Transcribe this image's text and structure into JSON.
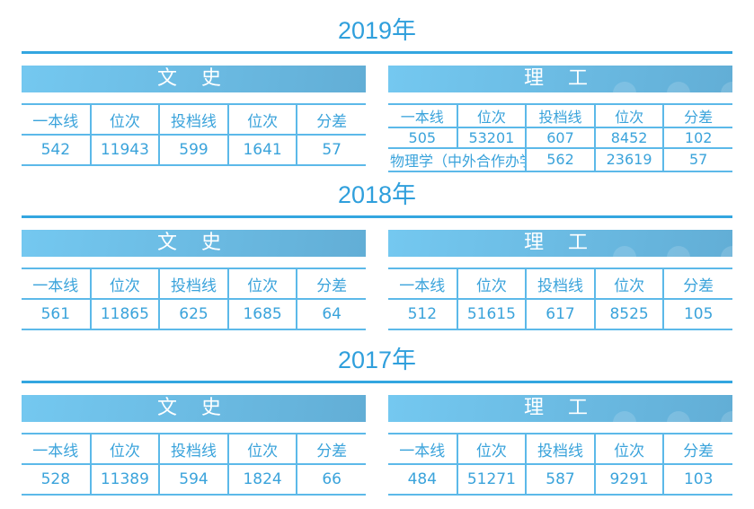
{
  "columns": [
    "一本线",
    "位次",
    "投档线",
    "位次",
    "分差"
  ],
  "sections": [
    {
      "year": "2019年",
      "left": {
        "title": "文 史",
        "rows": [
          [
            "542",
            "11943",
            "599",
            "1641",
            "57"
          ]
        ]
      },
      "right": {
        "title": "理 工",
        "rows": [
          [
            "505",
            "53201",
            "607",
            "8452",
            "102"
          ],
          [
            "物理学（中外合作办学）",
            "562",
            "23619",
            "57"
          ]
        ]
      }
    },
    {
      "year": "2018年",
      "left": {
        "title": "文 史",
        "rows": [
          [
            "561",
            "11865",
            "625",
            "1685",
            "64"
          ]
        ]
      },
      "right": {
        "title": "理 工",
        "rows": [
          [
            "512",
            "51615",
            "617",
            "8525",
            "105"
          ]
        ]
      }
    },
    {
      "year": "2017年",
      "left": {
        "title": "文 史",
        "rows": [
          [
            "528",
            "11389",
            "594",
            "1824",
            "66"
          ]
        ]
      },
      "right": {
        "title": "理 工",
        "rows": [
          [
            "484",
            "51271",
            "587",
            "9291",
            "103"
          ]
        ]
      }
    }
  ],
  "colors": {
    "accent": "#33a6e0",
    "banner_start": "#74c8f0",
    "banner_end": "#62aed6"
  }
}
